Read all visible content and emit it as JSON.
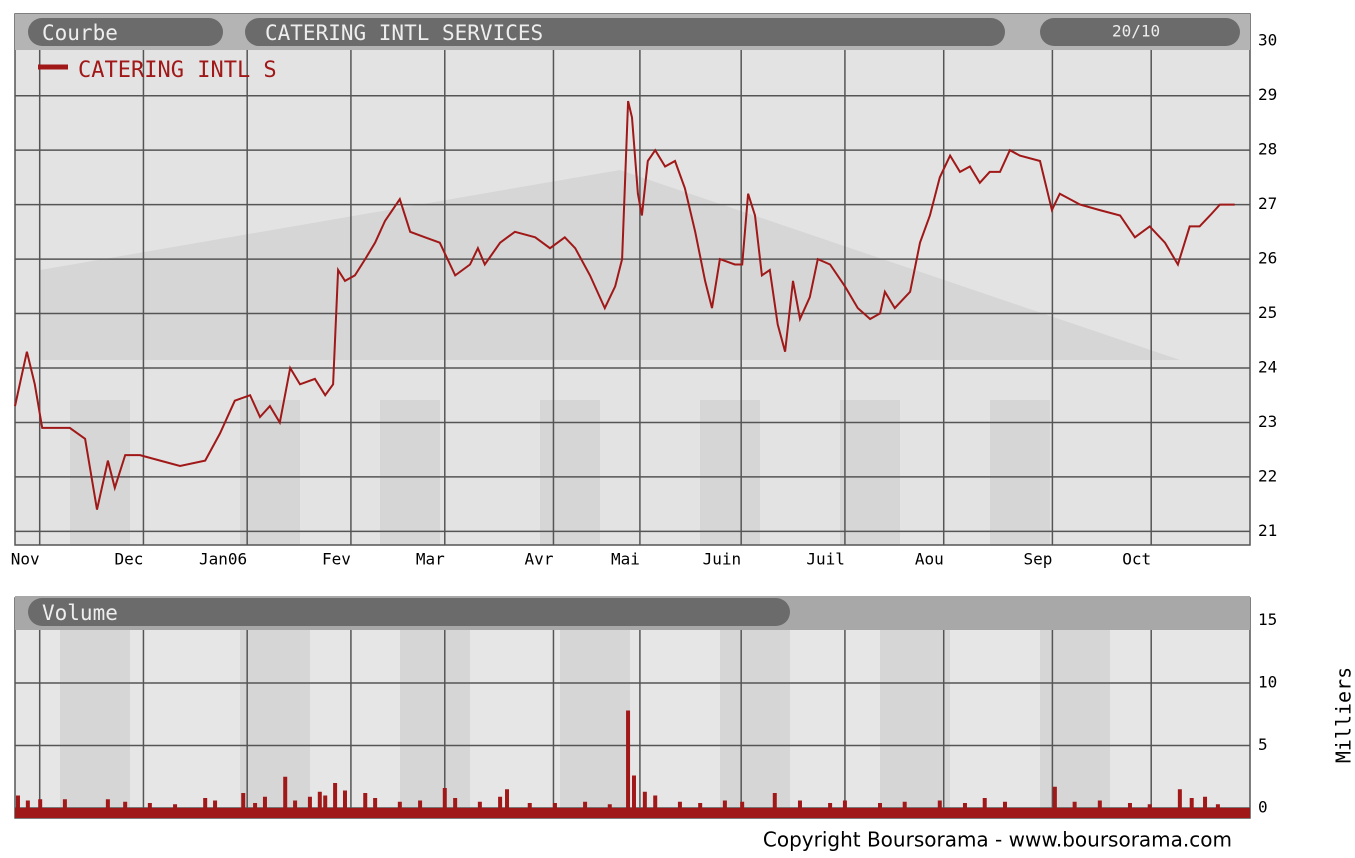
{
  "chart_data": [
    {
      "type": "line",
      "tab": "Courbe",
      "title": "CATERING INTL SERVICES",
      "date": "20/10",
      "x": [
        0,
        2.4,
        4,
        5.5,
        11.1,
        14.2,
        16.6,
        18.8,
        20.2,
        22.3,
        25.3,
        29.4,
        33.4,
        38.5,
        41.5,
        44.5,
        47.6,
        49.6,
        51.6,
        53.6,
        55.7,
        57.7,
        60.7,
        62.8,
        64.4,
        65.4,
        66.8,
        68.8,
        70.9,
        72.9,
        74.9,
        77.9,
        80,
        83,
        86,
        89.1,
        92.1,
        93.7,
        95.1,
        98.2,
        101.2,
        105.3,
        108.3,
        111.3,
        113.4,
        116.4,
        119.4,
        121.5,
        122.9,
        124.1,
        124.9,
        126.1,
        126.9,
        128.1,
        129.6,
        131.6,
        133.6,
        135.6,
        137.7,
        139.7,
        141.1,
        142.7,
        145.7,
        147.2,
        148.4,
        149.8,
        151.2,
        152.8,
        154.4,
        155.9,
        157.5,
        158.9,
        160.9,
        162.5,
        165,
        168,
        170.6,
        173.1,
        175.1,
        176.1,
        178.1,
        181.2,
        183.2,
        185.2,
        187.2,
        189.3,
        191.3,
        193.3,
        195.3,
        197.3,
        199.4,
        201.4,
        203.4,
        207.5,
        209.9,
        211.5,
        215.6,
        219.6,
        223.7,
        226.7,
        229.7,
        232.8,
        235.4,
        237.8,
        239.8,
        241.9,
        243.9,
        246.9
      ],
      "series": [
        {
          "name": "CATERING INTL S",
          "color": "#a01818",
          "values": [
            23.3,
            24.3,
            23.7,
            22.9,
            22.9,
            22.7,
            21.4,
            22.3,
            21.8,
            22.4,
            22.4,
            22.3,
            22.2,
            22.3,
            22.8,
            23.4,
            23.5,
            23.1,
            23.3,
            23.0,
            24.0,
            23.7,
            23.8,
            23.5,
            23.7,
            25.8,
            25.6,
            25.7,
            26.0,
            26.3,
            26.7,
            27.1,
            26.5,
            26.4,
            26.3,
            25.7,
            25.9,
            26.2,
            25.9,
            26.3,
            26.5,
            26.4,
            26.2,
            26.4,
            26.2,
            25.7,
            25.1,
            25.5,
            26.0,
            28.9,
            28.6,
            27.2,
            26.8,
            27.8,
            28.0,
            27.7,
            27.8,
            27.3,
            26.5,
            25.6,
            25.1,
            26.0,
            25.9,
            25.9,
            27.2,
            26.8,
            25.7,
            25.8,
            24.8,
            24.3,
            25.6,
            24.9,
            25.3,
            26.0,
            25.9,
            25.5,
            25.1,
            24.9,
            25.0,
            25.4,
            25.1,
            25.4,
            26.3,
            26.8,
            27.5,
            27.9,
            27.6,
            27.7,
            27.4,
            27.6,
            27.6,
            28.0,
            27.9,
            27.8,
            26.9,
            27.2,
            27.0,
            26.9,
            26.8,
            26.4,
            26.6,
            26.3,
            25.9,
            26.6,
            26.6,
            26.8,
            27.0,
            27.0
          ]
        }
      ],
      "xlim": [
        0,
        250
      ],
      "xticks": [
        {
          "value": 5,
          "label": "Nov"
        },
        {
          "value": 26,
          "label": "Dec"
        },
        {
          "value": 47,
          "label": "Jan06"
        },
        {
          "value": 68,
          "label": "Fev"
        },
        {
          "value": 87,
          "label": "Mar"
        },
        {
          "value": 109,
          "label": "Avr"
        },
        {
          "value": 126.5,
          "label": "Mai"
        },
        {
          "value": 147,
          "label": "Juin"
        },
        {
          "value": 168,
          "label": "Juil"
        },
        {
          "value": 188,
          "label": "Aou"
        },
        {
          "value": 210,
          "label": "Sep"
        },
        {
          "value": 230,
          "label": "Oct"
        }
      ],
      "ylim": [
        20.75,
        30.5
      ],
      "yticks": [
        21,
        22,
        23,
        24,
        25,
        26,
        27,
        28,
        29,
        30
      ],
      "grid": true
    },
    {
      "type": "bar",
      "title": "Volume",
      "y_label": "Milliers",
      "source": "Copyright Boursorama - www.boursorama.com",
      "color": "#a01818",
      "x": [
        0.6,
        2.6,
        5.1,
        10.1,
        18.8,
        22.3,
        27.3,
        32.4,
        38.5,
        40.5,
        46.2,
        48.6,
        50.6,
        54.7,
        56.7,
        59.7,
        61.7,
        62.8,
        64.8,
        66.8,
        70.9,
        72.9,
        77.9,
        82,
        87,
        89.1,
        94.1,
        98.2,
        99.6,
        104.2,
        109.3,
        115.4,
        120.4,
        124.1,
        125.3,
        127.5,
        129.6,
        134.6,
        138.7,
        143.7,
        147.2,
        153.8,
        158.9,
        165,
        168,
        175.1,
        180.1,
        187.2,
        192.3,
        196.3,
        200.4,
        210.5,
        214.5,
        219.6,
        225.7,
        229.7,
        235.8,
        238.2,
        240.9,
        243.5
      ],
      "values": [
        1.0,
        0.6,
        0.7,
        0.7,
        0.7,
        0.5,
        0.4,
        0.3,
        0.8,
        0.6,
        1.2,
        0.4,
        0.9,
        2.5,
        0.6,
        0.9,
        1.3,
        1.0,
        2.0,
        1.4,
        1.2,
        0.8,
        0.5,
        0.6,
        1.6,
        0.8,
        0.5,
        0.9,
        1.5,
        0.4,
        0.4,
        0.5,
        0.3,
        7.8,
        2.6,
        1.3,
        1.0,
        0.5,
        0.4,
        0.6,
        0.5,
        1.2,
        0.6,
        0.4,
        0.6,
        0.4,
        0.5,
        0.6,
        0.4,
        0.8,
        0.5,
        1.7,
        0.5,
        0.6,
        0.4,
        0.3,
        1.5,
        0.8,
        0.9,
        0.3
      ],
      "xlim": [
        0,
        250
      ],
      "ylim": [
        -0.8,
        16.8
      ],
      "yticks": [
        0,
        5,
        10,
        15
      ],
      "grid": true
    }
  ]
}
